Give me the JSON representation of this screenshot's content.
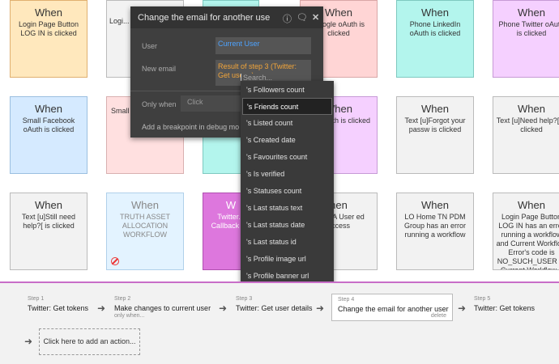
{
  "cards_row1": [
    {
      "when": "When",
      "desc": "Login Page Button LOG IN is clicked",
      "bg": "#ffe8bd",
      "border": "#e0b070"
    },
    {
      "when": "",
      "desc": "Logi... LOG...",
      "bg": "#f2f2f2",
      "border": "#bbb"
    },
    {
      "when": "When",
      "desc": "Google oAuth is clicked",
      "bg": "#ffd5d5",
      "border": "#d9a7a7"
    },
    {
      "when": "When",
      "desc": "Phone LinkedIn oAuth is clicked",
      "bg": "#b3f5ed",
      "border": "#7fc9c0"
    },
    {
      "when": "When",
      "desc": "Phone Twitter oAuth is clicked",
      "bg": "#f5d0ff",
      "border": "#c79ad6"
    }
  ],
  "cards_row2": [
    {
      "when": "When",
      "desc": "Small Facebook oAuth is clicked",
      "bg": "#d5eaff",
      "border": "#9bbfe0"
    },
    {
      "when": "",
      "desc": "Small",
      "bg": "#ffe0e0",
      "border": "#d9b0b0"
    },
    {
      "when": "When",
      "desc": "tter oAuth is clicked",
      "bg": "#f5d0ff",
      "border": "#c79ad6"
    },
    {
      "when": "When",
      "desc": "Text [u]Forgot your passw is clicked",
      "bg": "#f2f2f2",
      "border": "#bbb"
    },
    {
      "when": "When",
      "desc": "Text [u]Need help?[ is clicked",
      "bg": "#f2f2f2",
      "border": "#bbb"
    }
  ],
  "cards_row3": [
    {
      "when": "When",
      "desc": "Text [u]Still need help?[ is clicked",
      "bg": "#f2f2f2",
      "border": "#bbb"
    },
    {
      "when": "When",
      "desc": "TRUTH ASSET ALLOCATION WORKFLOW",
      "bg": "#e3f3ff",
      "border": "#b0d0ea"
    },
    {
      "when": "W",
      "desc": "Twitter... Callback T...",
      "bg": "#dd77dd",
      "border": "#b050b0"
    },
    {
      "when": "hen",
      "desc": "count A User ed access",
      "bg": "#f2f2f2",
      "border": "#bbb"
    },
    {
      "when": "When",
      "desc": "LO Home TN PDM Group has an error running a workflow",
      "bg": "#f2f2f2",
      "border": "#bbb"
    },
    {
      "when": "When",
      "desc": "Login Page Button LOG IN has an error running a workflow and Current Workflow Error's code is NO_SUCH_USER or Current Workflow...",
      "bg": "#f2f2f2",
      "border": "#bbb"
    }
  ],
  "modal": {
    "title": "Change the email for another use",
    "user_label": "User",
    "user_value": "Current User",
    "new_email_label": "New email",
    "new_email_value": "Result of step 3 (Twitter: Get user...)",
    "search_placeholder": "Search...",
    "only_when_label": "Only when",
    "only_when_value": "Click",
    "breakpoint_text": "Add a breakpoint in debug mo"
  },
  "dropdown": {
    "options": [
      "'s Followers count",
      "'s Friends count",
      "'s Listed count",
      "'s Created date",
      "'s Favourites count",
      "'s Is verified",
      "'s Statuses count",
      "'s Last status text",
      "'s Last status date",
      "'s Last status id",
      "'s Profile image url",
      "'s Profile banner url"
    ],
    "selected_index": 1
  },
  "steps": [
    {
      "num": "Step 1",
      "title": "Twitter: Get tokens",
      "sub": ""
    },
    {
      "num": "Step 2",
      "title": "Make changes to current user",
      "sub": "only when..."
    },
    {
      "num": "Step 3",
      "title": "Twitter: Get user details",
      "sub": ""
    },
    {
      "num": "Step 4",
      "title": "Change the email for another user",
      "sub": "delete"
    },
    {
      "num": "Step 5",
      "title": "Twitter: Get tokens",
      "sub": ""
    }
  ],
  "add_action": "Click here to add an action...",
  "accent_color": "#c86ec8"
}
